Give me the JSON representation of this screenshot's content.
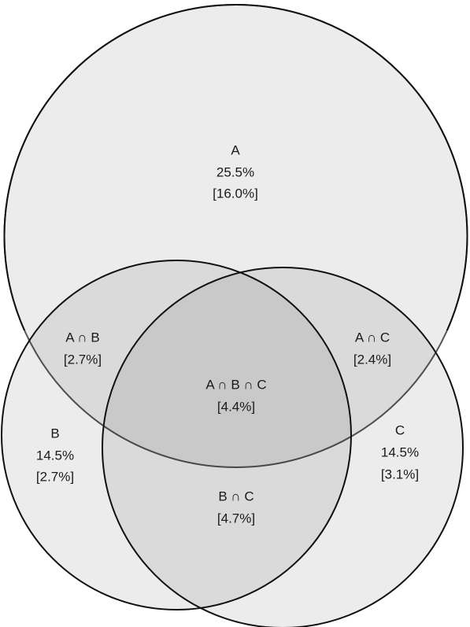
{
  "regions": [
    {
      "lines": [
        "A",
        "25.5%",
        "[16.0%]"
      ]
    },
    {
      "lines": [
        "A ∩ B",
        "[2.7%]"
      ]
    },
    {
      "lines": [
        "A ∩ C",
        "[2.4%]"
      ]
    },
    {
      "lines": [
        "A ∩ B ∩ C",
        "[4.4%]"
      ]
    },
    {
      "lines": [
        "B",
        "14.5%",
        "[2.7%]"
      ]
    },
    {
      "lines": [
        "C",
        "14.5%",
        "[3.1%]"
      ]
    },
    {
      "lines": [
        "B ∩ C",
        "[4.7%]"
      ]
    }
  ]
}
